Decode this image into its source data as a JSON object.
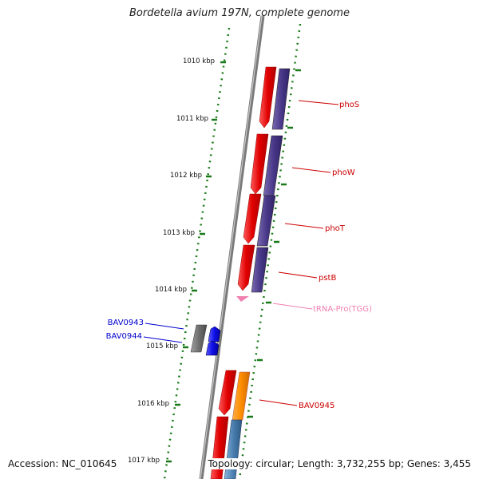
{
  "title": "Bordetella avium 197N, complete genome",
  "footer": {
    "accession": "Accession: NC_010645",
    "summary": "Topology: circular; Length: 3,732,255 bp; Genes: 3,455"
  },
  "scale_labels": [
    "1010 kbp",
    "1011 kbp",
    "1012 kbp",
    "1013 kbp",
    "1014 kbp",
    "1015 kbp",
    "1016 kbp",
    "1017 kbp"
  ],
  "gene_labels": {
    "phoS": "phoS",
    "phoW": "phoW",
    "phoT": "phoT",
    "pstB": "pstB",
    "trna": "tRNA-Pro(TGG)",
    "bav0943": "BAV0943",
    "bav0944": "BAV0944",
    "bav0945": "BAV0945"
  },
  "colors": {
    "backbone": "#7a7a7a",
    "dots": "#1a7a1a",
    "gene_red": "#e60000",
    "gene_purple": "#4a3a8a",
    "gene_blue": "#1010e8",
    "gene_gray": "#707070",
    "gene_orange": "#ff8c00",
    "gene_steel": "#4a7fb0",
    "trna_pink": "#f080b0",
    "label_red": "#cc0000",
    "label_blue": "#0000cc"
  }
}
